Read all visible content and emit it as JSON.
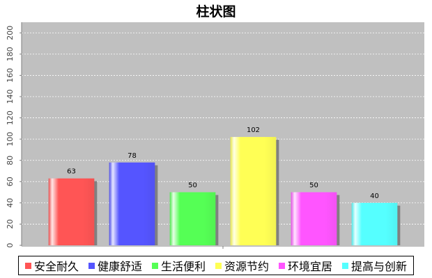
{
  "chart_data": {
    "type": "bar",
    "title": "柱状图",
    "xlabel": "",
    "ylabel": "",
    "ylim": [
      0,
      210
    ],
    "yticks": [
      0,
      20,
      40,
      60,
      80,
      100,
      120,
      140,
      160,
      180,
      200
    ],
    "grid": true,
    "legend_position": "bottom",
    "series": [
      {
        "name": "安全耐久",
        "value": 63,
        "color": "#ff5555"
      },
      {
        "name": "健康舒适",
        "value": 78,
        "color": "#5555ff"
      },
      {
        "name": "生活便利",
        "value": 50,
        "color": "#55ff55"
      },
      {
        "name": "资源节约",
        "value": 102,
        "color": "#ffff55"
      },
      {
        "name": "环境宜居",
        "value": 50,
        "color": "#ff55ff"
      },
      {
        "name": "提高与创新",
        "value": 40,
        "color": "#55ffff"
      }
    ]
  }
}
